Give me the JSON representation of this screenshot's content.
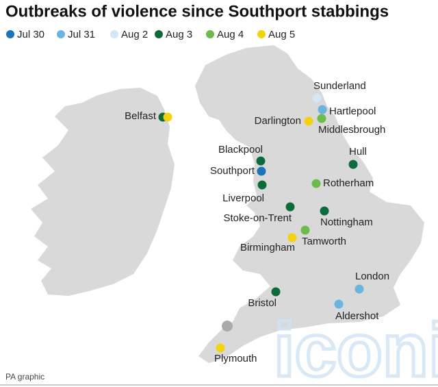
{
  "title": "Outbreaks of violence since Southport stabbings",
  "legend": [
    {
      "label": "Jul 30",
      "color": "#1b74b8"
    },
    {
      "label": "Jul 31",
      "color": "#6ab4e0"
    },
    {
      "label": "Aug 2",
      "color": "#d4e7f4"
    },
    {
      "label": "Aug 3",
      "color": "#0d6b3b"
    },
    {
      "label": "Aug 4",
      "color": "#6dbb4d"
    },
    {
      "label": "Aug 5",
      "color": "#f5d20f"
    }
  ],
  "locations": [
    {
      "name": "Sunderland",
      "dates": [
        "Aug 2"
      ]
    },
    {
      "name": "Hartlepool",
      "dates": [
        "Jul 31"
      ]
    },
    {
      "name": "Middlesbrough",
      "dates": [
        "Aug 4"
      ]
    },
    {
      "name": "Darlington",
      "dates": [
        "Aug 5"
      ]
    },
    {
      "name": "Belfast",
      "dates": [
        "Aug 3",
        "Aug 5"
      ]
    },
    {
      "name": "Blackpool",
      "dates": [
        "Aug 3"
      ]
    },
    {
      "name": "Southport",
      "dates": [
        "Jul 30"
      ]
    },
    {
      "name": "Liverpool",
      "dates": [
        "Aug 3"
      ]
    },
    {
      "name": "Hull",
      "dates": [
        "Aug 3"
      ]
    },
    {
      "name": "Rotherham",
      "dates": [
        "Aug 4"
      ]
    },
    {
      "name": "Stoke-on-Trent",
      "dates": [
        "Aug 3"
      ]
    },
    {
      "name": "Nottingham",
      "dates": [
        "Aug 3"
      ]
    },
    {
      "name": "Tamworth",
      "dates": [
        "Aug 4"
      ]
    },
    {
      "name": "Birmingham",
      "dates": [
        "Aug 5"
      ]
    },
    {
      "name": "London",
      "dates": [
        "Jul 31"
      ]
    },
    {
      "name": "Aldershot",
      "dates": [
        "Jul 31"
      ]
    },
    {
      "name": "Bristol",
      "dates": [
        "Aug 3"
      ]
    },
    {
      "name": "Plymouth",
      "dates": [
        "Aug 5"
      ]
    }
  ],
  "credit": "PA graphic",
  "watermark": "iconic"
}
